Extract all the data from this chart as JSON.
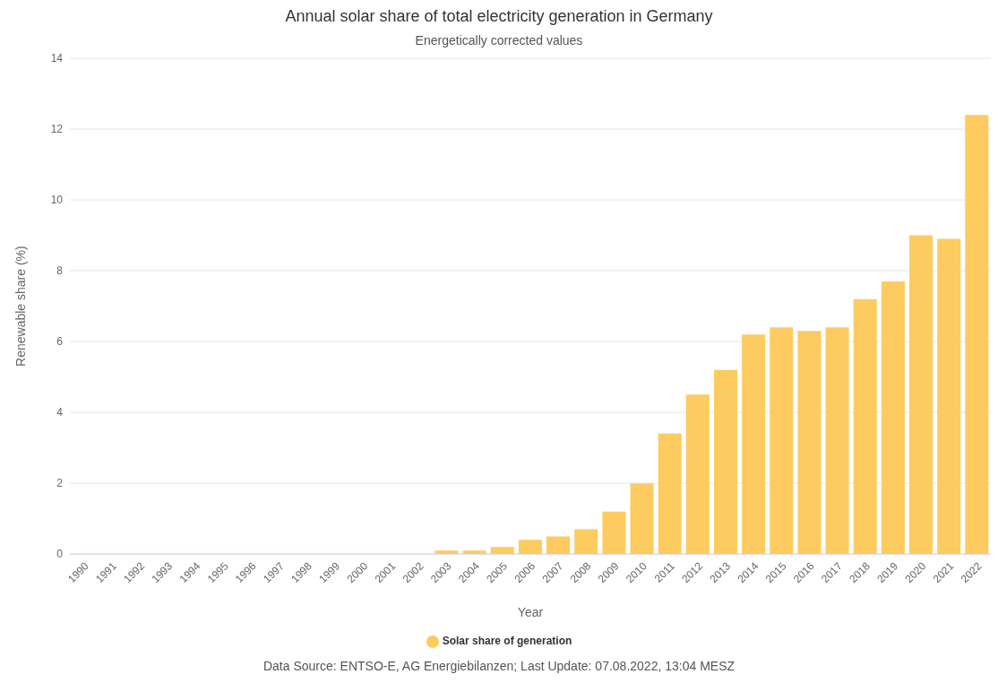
{
  "chart_data": {
    "type": "bar",
    "title": "Annual solar share of total electricity generation in Germany",
    "subtitle": "Energetically corrected values",
    "xlabel": "Year",
    "ylabel": "Renewable share (%)",
    "categories": [
      "1990",
      "1991",
      "1992",
      "1993",
      "1994",
      "1995",
      "1996",
      "1997",
      "1998",
      "1999",
      "2000",
      "2001",
      "2002",
      "2003",
      "2004",
      "2005",
      "2006",
      "2007",
      "2008",
      "2009",
      "2010",
      "2011",
      "2012",
      "2013",
      "2014",
      "2015",
      "2016",
      "2017",
      "2018",
      "2019",
      "2020",
      "2021",
      "2022"
    ],
    "series": [
      {
        "name": "Solar share of generation",
        "color": "#fdcb5f",
        "values": [
          0,
          0,
          0,
          0,
          0,
          0,
          0,
          0,
          0,
          0,
          0,
          0,
          0,
          0.1,
          0.1,
          0.2,
          0.4,
          0.5,
          0.7,
          1.2,
          2.0,
          3.4,
          4.5,
          5.2,
          6.2,
          6.4,
          6.3,
          6.4,
          7.2,
          7.7,
          9.0,
          8.9,
          12.4
        ]
      }
    ],
    "ylim": [
      0,
      14
    ],
    "yticks": [
      0,
      2,
      4,
      6,
      8,
      10,
      12,
      14
    ],
    "grid": "y",
    "legend": "bottom",
    "annotations": [
      "Data Source: ENTSO-E, AG Energiebilanzen; Last Update: 07.08.2022, 13:04 MESZ"
    ]
  }
}
